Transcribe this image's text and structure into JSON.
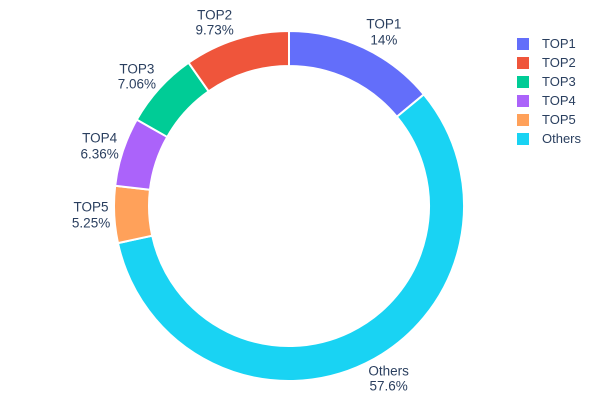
{
  "figure": {
    "background": "#ffffff",
    "text_color": "#2a3f5f",
    "slice_border_color": "#ffffff"
  },
  "chart_data": {
    "type": "pie",
    "subtype": "donut",
    "hole": 0.8,
    "direction": "clockwise",
    "start_angle_deg": 0,
    "title": "",
    "unit": "%",
    "categories": [
      "TOP1",
      "TOP2",
      "TOP3",
      "TOP4",
      "TOP5",
      "Others"
    ],
    "values": [
      14,
      9.73,
      7.06,
      6.36,
      5.25,
      57.6
    ],
    "slices_clockwise_from_top": [
      {
        "label": "TOP1",
        "value": 14,
        "display": "14%",
        "color": "#636EFA"
      },
      {
        "label": "Others",
        "value": 57.6,
        "display": "57.6%",
        "color": "#19D3F3"
      },
      {
        "label": "TOP5",
        "value": 5.25,
        "display": "5.25%",
        "color": "#FFA15A"
      },
      {
        "label": "TOP4",
        "value": 6.36,
        "display": "6.36%",
        "color": "#AB63FA"
      },
      {
        "label": "TOP3",
        "value": 7.06,
        "display": "7.06%",
        "color": "#00CC96"
      },
      {
        "label": "TOP2",
        "value": 9.73,
        "display": "9.73%",
        "color": "#EF553B"
      }
    ],
    "legend": {
      "position": "right",
      "items": [
        {
          "label": "TOP1",
          "color": "#636EFA"
        },
        {
          "label": "TOP2",
          "color": "#EF553B"
        },
        {
          "label": "TOP3",
          "color": "#00CC96"
        },
        {
          "label": "TOP4",
          "color": "#AB63FA"
        },
        {
          "label": "TOP5",
          "color": "#FFA15A"
        },
        {
          "label": "Others",
          "color": "#19D3F3"
        }
      ]
    }
  }
}
